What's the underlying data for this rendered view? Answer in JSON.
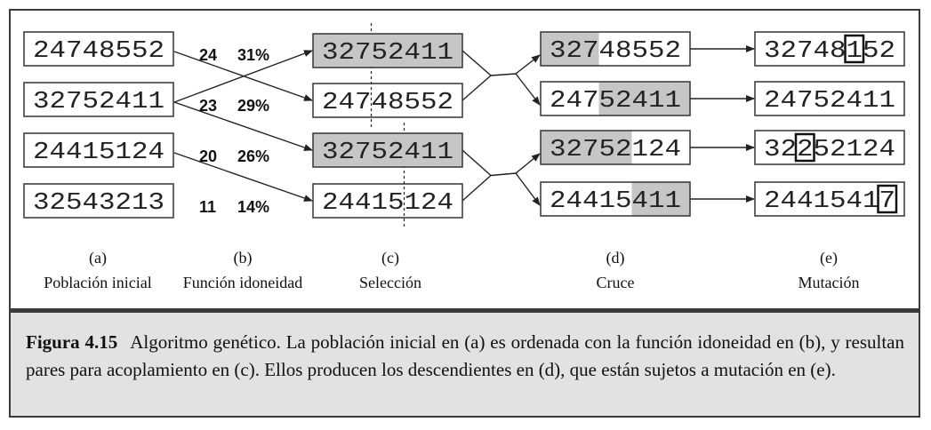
{
  "figure": {
    "columns": [
      {
        "letter": "(a)",
        "title": "Población inicial"
      },
      {
        "letter": "(b)",
        "title": "Función idoneidad"
      },
      {
        "letter": "(c)",
        "title": "Selección"
      },
      {
        "letter": "(d)",
        "title": "Cruce"
      },
      {
        "letter": "(e)",
        "title": "Mutación"
      }
    ],
    "population": [
      "24748552",
      "32752411",
      "24415124",
      "32543213"
    ],
    "fitness": [
      {
        "score": "24",
        "percent": "31%"
      },
      {
        "score": "23",
        "percent": "29%"
      },
      {
        "score": "20",
        "percent": "26%"
      },
      {
        "score": "11",
        "percent": "14%"
      }
    ],
    "selection": [
      "32752411",
      "24748552",
      "32752411",
      "24415124"
    ],
    "crossover_points": [
      3,
      5
    ],
    "crossover": [
      "32748552",
      "24752411",
      "32752124",
      "24415411"
    ],
    "mutation": [
      {
        "value": "32748152",
        "mutated_index": 5
      },
      {
        "value": "24752411",
        "mutated_index": -1
      },
      {
        "value": "32252124",
        "mutated_index": 2
      },
      {
        "value": "24415417",
        "mutated_index": 7
      }
    ],
    "colors": {
      "shade": "#c6c6c6",
      "border": "#333333",
      "caption_bg": "#e2e2e2"
    }
  },
  "caption": {
    "label": "Figura 4.15",
    "text": "Algoritmo genético. La población inicial en (a) es ordenada con la función idoneidad en (b), y resultan pares para acoplamiento en (c). Ellos producen los descendientes en (d), que están sujetos a mutación en (e)."
  }
}
